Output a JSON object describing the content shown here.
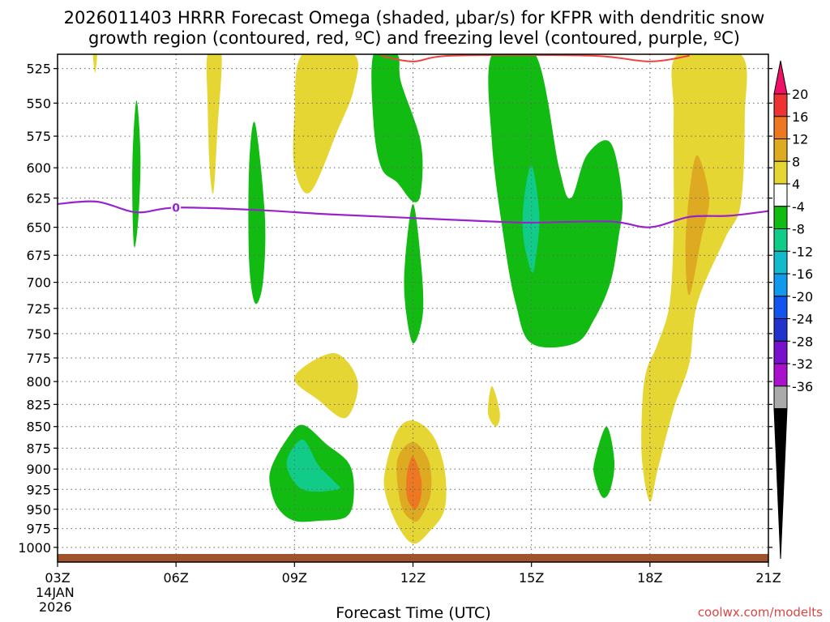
{
  "chart_data": {
    "type": "contour-timeheight",
    "title_line1": "2026011403 HRRR Forecast Omega (shaded, μbar/s) for KFPR with dendritic snow",
    "title_line2": "growth region (contoured, red, ºC) and freezing level (contoured, purple, ºC)",
    "xlabel": "Forecast Time (UTC)",
    "credit": "coolwx.com/modelts",
    "x_ticks": [
      {
        "hour": 3,
        "label": "03Z"
      },
      {
        "hour": 6,
        "label": "06Z"
      },
      {
        "hour": 9,
        "label": "09Z"
      },
      {
        "hour": 12,
        "label": "12Z"
      },
      {
        "hour": 15,
        "label": "15Z"
      },
      {
        "hour": 18,
        "label": "18Z"
      },
      {
        "hour": 21,
        "label": "21Z"
      }
    ],
    "x_date_line1": "14JAN",
    "x_date_line2": "2026",
    "xlim": [
      3,
      21
    ],
    "y_ticks": [
      525,
      550,
      575,
      600,
      625,
      650,
      675,
      700,
      725,
      750,
      775,
      800,
      825,
      850,
      875,
      900,
      925,
      950,
      975,
      1000
    ],
    "ylim_hpa": [
      515,
      1020
    ],
    "colorbar_labels": [
      "20",
      "16",
      "12",
      "8",
      "4",
      "-4",
      "-8",
      "-12",
      "-16",
      "-20",
      "-24",
      "-28",
      "-32",
      "-36"
    ],
    "colorbar_colors": [
      "#ee1166",
      "#ee3333",
      "#ee7722",
      "#ddaa22",
      "#e6d633",
      "#ffffff",
      "#11bb11",
      "#11cc88",
      "#11bbcc",
      "#1199ee",
      "#1155ee",
      "#2233cc",
      "#7711cc",
      "#aa11cc",
      "#aaaaaa",
      "#000000"
    ],
    "contour_label": "0",
    "freezing_level": {
      "color": "#9922cc",
      "hours": [
        3,
        4,
        5,
        6,
        8,
        10,
        12,
        14,
        15,
        17,
        18,
        19,
        20,
        21
      ],
      "hpa": [
        630,
        628,
        637,
        633,
        635,
        639,
        642,
        645,
        646,
        645,
        650,
        641,
        640,
        636
      ]
    },
    "dgz_line": {
      "color": "#ee4444",
      "hours": [
        11.2,
        12,
        13,
        16.5,
        18,
        19
      ],
      "hpa": [
        516,
        520,
        516,
        516,
        520,
        516
      ]
    },
    "omega_regions": [
      {
        "value": "4",
        "color": "#e6d633",
        "points": [
          [
            3.9,
            515
          ],
          [
            4.0,
            515
          ],
          [
            3.95,
            528
          ]
        ]
      },
      {
        "value": "4",
        "color": "#e6d633",
        "points": [
          [
            6.8,
            515
          ],
          [
            7.15,
            515
          ],
          [
            7.05,
            570
          ],
          [
            6.95,
            620
          ],
          [
            6.85,
            600
          ],
          [
            6.8,
            550
          ]
        ]
      },
      {
        "value": "4",
        "color": "#e6d633",
        "points": [
          [
            9.2,
            515
          ],
          [
            10.5,
            515
          ],
          [
            10.5,
            540
          ],
          [
            10.1,
            570
          ],
          [
            9.4,
            620
          ],
          [
            9.0,
            600
          ],
          [
            9.0,
            560
          ]
        ]
      },
      {
        "value": "-4",
        "color": "#11bb11",
        "points": [
          [
            4.9,
            590
          ],
          [
            5.0,
            548
          ],
          [
            5.1,
            590
          ],
          [
            5.05,
            640
          ],
          [
            4.95,
            668
          ],
          [
            4.9,
            640
          ]
        ]
      },
      {
        "value": "-4",
        "color": "#11bb11",
        "points": [
          [
            7.85,
            600
          ],
          [
            8.0,
            565
          ],
          [
            8.25,
            640
          ],
          [
            8.2,
            700
          ],
          [
            8.0,
            720
          ],
          [
            7.85,
            680
          ]
        ]
      },
      {
        "value": "-4",
        "color": "#11bb11",
        "points": [
          [
            11.0,
            515
          ],
          [
            11.6,
            515
          ],
          [
            11.7,
            535
          ],
          [
            12.2,
            580
          ],
          [
            12.2,
            620
          ],
          [
            12.0,
            628
          ],
          [
            11.6,
            612
          ],
          [
            11.2,
            600
          ],
          [
            11.0,
            565
          ]
        ]
      },
      {
        "value": "-4",
        "color": "#11bb11",
        "points": [
          [
            11.8,
            680
          ],
          [
            12.0,
            630
          ],
          [
            12.2,
            680
          ],
          [
            12.25,
            730
          ],
          [
            12.0,
            760
          ],
          [
            11.8,
            720
          ]
        ]
      },
      {
        "value": "-4",
        "color": "#11bb11",
        "points": [
          [
            14.0,
            515
          ],
          [
            15.1,
            515
          ],
          [
            15.7,
            600
          ],
          [
            16.0,
            625
          ],
          [
            16.4,
            590
          ],
          [
            17.0,
            580
          ],
          [
            17.3,
            625
          ],
          [
            17.2,
            660
          ],
          [
            17.0,
            700
          ],
          [
            16.6,
            735
          ],
          [
            16.1,
            760
          ],
          [
            15.0,
            760
          ],
          [
            14.6,
            720
          ],
          [
            14.3,
            660
          ],
          [
            14.0,
            580
          ]
        ]
      },
      {
        "value": "-8",
        "color": "#11cc88",
        "points": [
          [
            14.8,
            630
          ],
          [
            15.0,
            598
          ],
          [
            15.2,
            640
          ],
          [
            15.1,
            680
          ],
          [
            15.0,
            690
          ],
          [
            14.8,
            660
          ]
        ]
      },
      {
        "value": "4",
        "color": "#e6d633",
        "points": [
          [
            18.7,
            515
          ],
          [
            20.3,
            515
          ],
          [
            20.4,
            560
          ],
          [
            20.3,
            630
          ],
          [
            19.9,
            660
          ],
          [
            19.2,
            720
          ],
          [
            19.0,
            780
          ],
          [
            18.6,
            830
          ],
          [
            18.2,
            900
          ],
          [
            18.0,
            940
          ],
          [
            17.8,
            890
          ],
          [
            17.8,
            830
          ],
          [
            17.9,
            790
          ],
          [
            18.2,
            760
          ],
          [
            18.5,
            720
          ],
          [
            18.6,
            650
          ],
          [
            18.6,
            560
          ]
        ]
      },
      {
        "value": "8",
        "color": "#ddaa22",
        "points": [
          [
            19.0,
            620
          ],
          [
            19.2,
            590
          ],
          [
            19.5,
            625
          ],
          [
            19.3,
            660
          ],
          [
            19.0,
            712
          ],
          [
            18.9,
            670
          ]
        ]
      },
      {
        "value": "4",
        "color": "#e6d633",
        "points": [
          [
            9.0,
            795
          ],
          [
            10.0,
            770
          ],
          [
            10.6,
            800
          ],
          [
            10.3,
            840
          ],
          [
            9.6,
            820
          ]
        ]
      },
      {
        "value": "4",
        "color": "#e6d633",
        "points": [
          [
            13.9,
            835
          ],
          [
            14.0,
            805
          ],
          [
            14.2,
            835
          ],
          [
            14.1,
            850
          ]
        ]
      },
      {
        "value": "-4",
        "color": "#11bb11",
        "points": [
          [
            8.4,
            900
          ],
          [
            8.8,
            865
          ],
          [
            9.2,
            848
          ],
          [
            9.8,
            870
          ],
          [
            10.4,
            895
          ],
          [
            10.5,
            935
          ],
          [
            10.3,
            960
          ],
          [
            9.6,
            965
          ],
          [
            9.0,
            965
          ],
          [
            8.6,
            950
          ],
          [
            8.4,
            925
          ]
        ]
      },
      {
        "value": "-8",
        "color": "#11cc88",
        "points": [
          [
            8.8,
            893
          ],
          [
            9.2,
            865
          ],
          [
            9.6,
            895
          ],
          [
            10.0,
            915
          ],
          [
            10.1,
            925
          ],
          [
            9.2,
            925
          ]
        ]
      },
      {
        "value": "4",
        "color": "#e6d633",
        "points": [
          [
            11.3,
            900
          ],
          [
            11.6,
            855
          ],
          [
            12.0,
            843
          ],
          [
            12.5,
            860
          ],
          [
            12.8,
            900
          ],
          [
            12.8,
            950
          ],
          [
            12.4,
            980
          ],
          [
            12.0,
            995
          ],
          [
            11.6,
            970
          ],
          [
            11.3,
            930
          ]
        ]
      },
      {
        "value": "8",
        "color": "#ddaa22",
        "points": [
          [
            11.6,
            890
          ],
          [
            12.0,
            868
          ],
          [
            12.4,
            890
          ],
          [
            12.45,
            930
          ],
          [
            12.2,
            960
          ],
          [
            12.0,
            965
          ],
          [
            11.7,
            945
          ]
        ]
      },
      {
        "value": "12",
        "color": "#ee7722",
        "points": [
          [
            11.85,
            905
          ],
          [
            12.0,
            885
          ],
          [
            12.2,
            910
          ],
          [
            12.2,
            935
          ],
          [
            12.05,
            950
          ],
          [
            11.85,
            935
          ]
        ]
      },
      {
        "value": "-4",
        "color": "#11bb11",
        "points": [
          [
            16.6,
            890
          ],
          [
            16.9,
            850
          ],
          [
            17.1,
            890
          ],
          [
            17.0,
            925
          ],
          [
            16.8,
            935
          ],
          [
            16.6,
            910
          ]
        ]
      }
    ]
  }
}
